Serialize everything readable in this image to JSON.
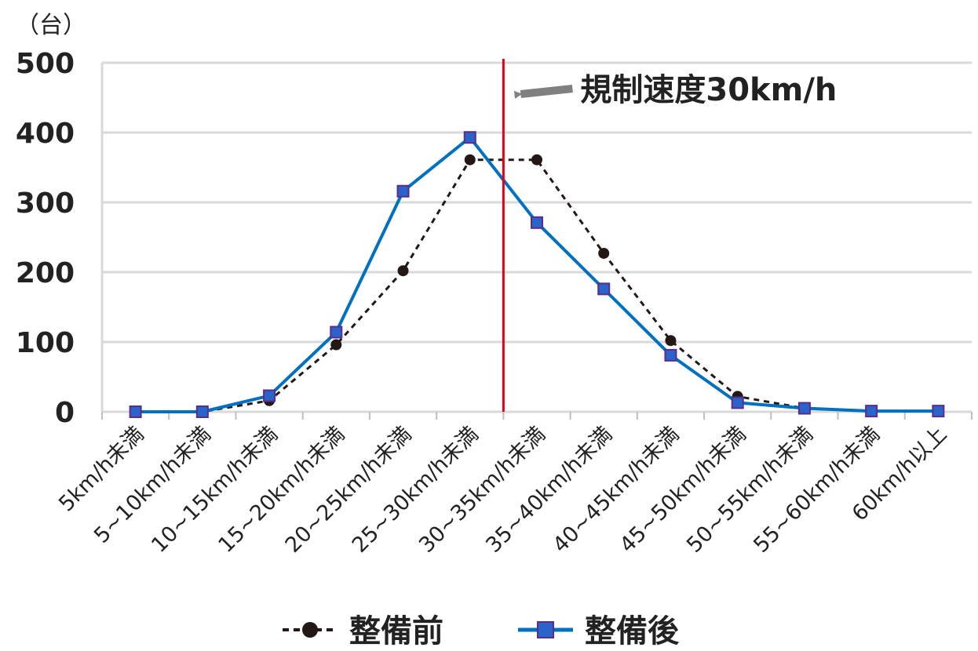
{
  "chart_data": {
    "type": "line",
    "y_unit_label": "（台）",
    "ylim": [
      0,
      500
    ],
    "y_ticks": [
      "0",
      "100",
      "200",
      "300",
      "400",
      "500"
    ],
    "categories": [
      "5km/h未満",
      "5~10km/h未満",
      "10~15km/h未満",
      "15~20km/h未満",
      "20~25km/h未満",
      "25~30km/h未満",
      "30~35km/h未満",
      "35~40km/h未満",
      "40~45km/h未満",
      "45~50km/h未満",
      "50~55km/h未満",
      "55~60km/h未満",
      "60km/h以上"
    ],
    "series": [
      {
        "name": "整備前",
        "values": [
          0,
          0,
          16,
          96,
          202,
          361,
          361,
          227,
          102,
          22,
          5,
          1,
          1
        ],
        "color": "#231815",
        "style": "dashed",
        "marker": "circle"
      },
      {
        "name": "整備後",
        "values": [
          0,
          0,
          23,
          114,
          316,
          393,
          271,
          176,
          81,
          13,
          5,
          1,
          1
        ],
        "color": "#0070c0",
        "marker_fill": "#2a63c9",
        "marker_edge": "#5a2d8a",
        "style": "solid",
        "marker": "square"
      }
    ],
    "reference_line": {
      "label": "規制速度30km/h",
      "position_between": [
        "25~30km/h未満",
        "30~35km/h未満"
      ],
      "color": "#e60012"
    },
    "grid": true,
    "legend_placement": "bottom-center"
  }
}
